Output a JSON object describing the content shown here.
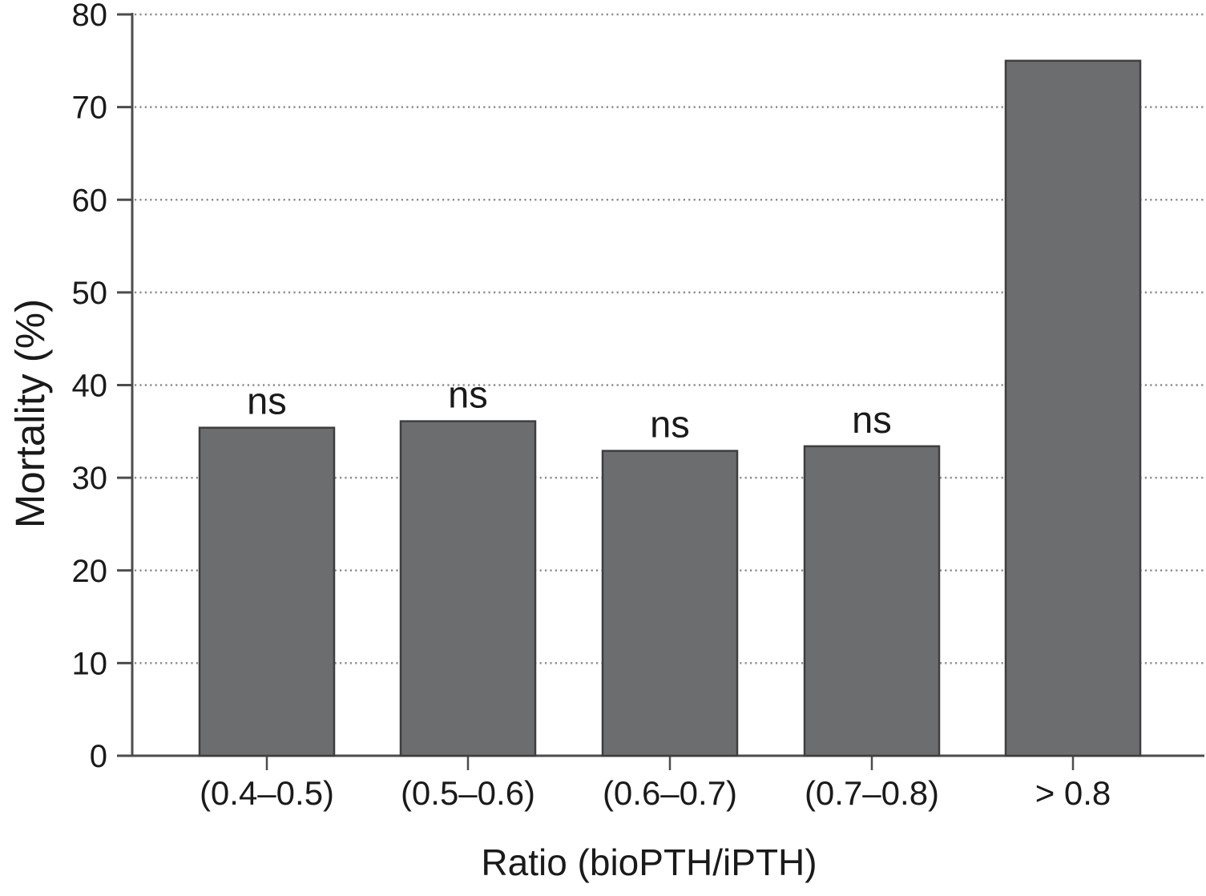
{
  "chart_data": {
    "type": "bar",
    "title": "",
    "xlabel": "Ratio (bioPTH/iPTH)",
    "ylabel": "Mortality (%)",
    "categories": [
      "(0.4–0.5)",
      "(0.5–0.6)",
      "(0.6–0.7)",
      "(0.7–0.8)",
      "> 0.8"
    ],
    "values": [
      35.4,
      36.1,
      32.9,
      33.4,
      75.0
    ],
    "bar_annotations": [
      "ns",
      "ns",
      "ns",
      "ns",
      ""
    ],
    "ylim": [
      0,
      80
    ],
    "yticks": [
      0,
      10,
      20,
      30,
      40,
      50,
      60,
      70,
      80
    ],
    "ytick_labels": [
      "0",
      "10",
      "20",
      "30",
      "40",
      "50",
      "60",
      "70",
      "80"
    ],
    "grid": {
      "horizontal": true,
      "style": "dotted",
      "at": [
        10,
        20,
        30,
        40,
        50,
        60,
        70,
        80
      ]
    },
    "legend": {
      "visible": false
    },
    "colors": {
      "background": "#ffffff",
      "bar_fill": "#6c6d6f",
      "bar_stroke": "#3e3e40",
      "axis": "#4c4c4e",
      "gridline": "#8c8c8c",
      "text": "#1a1a1a"
    }
  }
}
